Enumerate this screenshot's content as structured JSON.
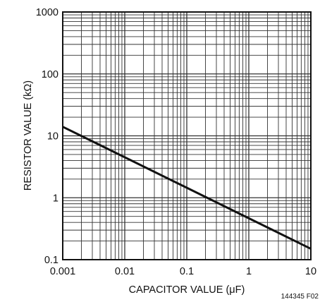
{
  "chart_data": {
    "type": "line",
    "xlabel": "CAPACITOR VALUE (μF)",
    "ylabel": "RESISTOR VALUE (kΩ)",
    "x_scale": "log",
    "y_scale": "log",
    "xlim": [
      0.001,
      10
    ],
    "ylim": [
      0.1,
      1000
    ],
    "x_ticks": [
      0.001,
      0.01,
      0.1,
      1,
      10
    ],
    "x_tick_labels": [
      "0.001",
      "0.01",
      "0.1",
      "1",
      "10"
    ],
    "y_ticks": [
      0.1,
      1,
      10,
      100,
      1000
    ],
    "y_tick_labels": [
      "0.1",
      "1",
      "10",
      "100",
      "1000"
    ],
    "grid": true,
    "series": [
      {
        "x": [
          0.001,
          10
        ],
        "y": [
          14,
          0.15
        ]
      }
    ],
    "figure_id": "144345 F02",
    "colors": {
      "line": "#111111",
      "grid": "#333333",
      "frame": "#111111"
    }
  }
}
